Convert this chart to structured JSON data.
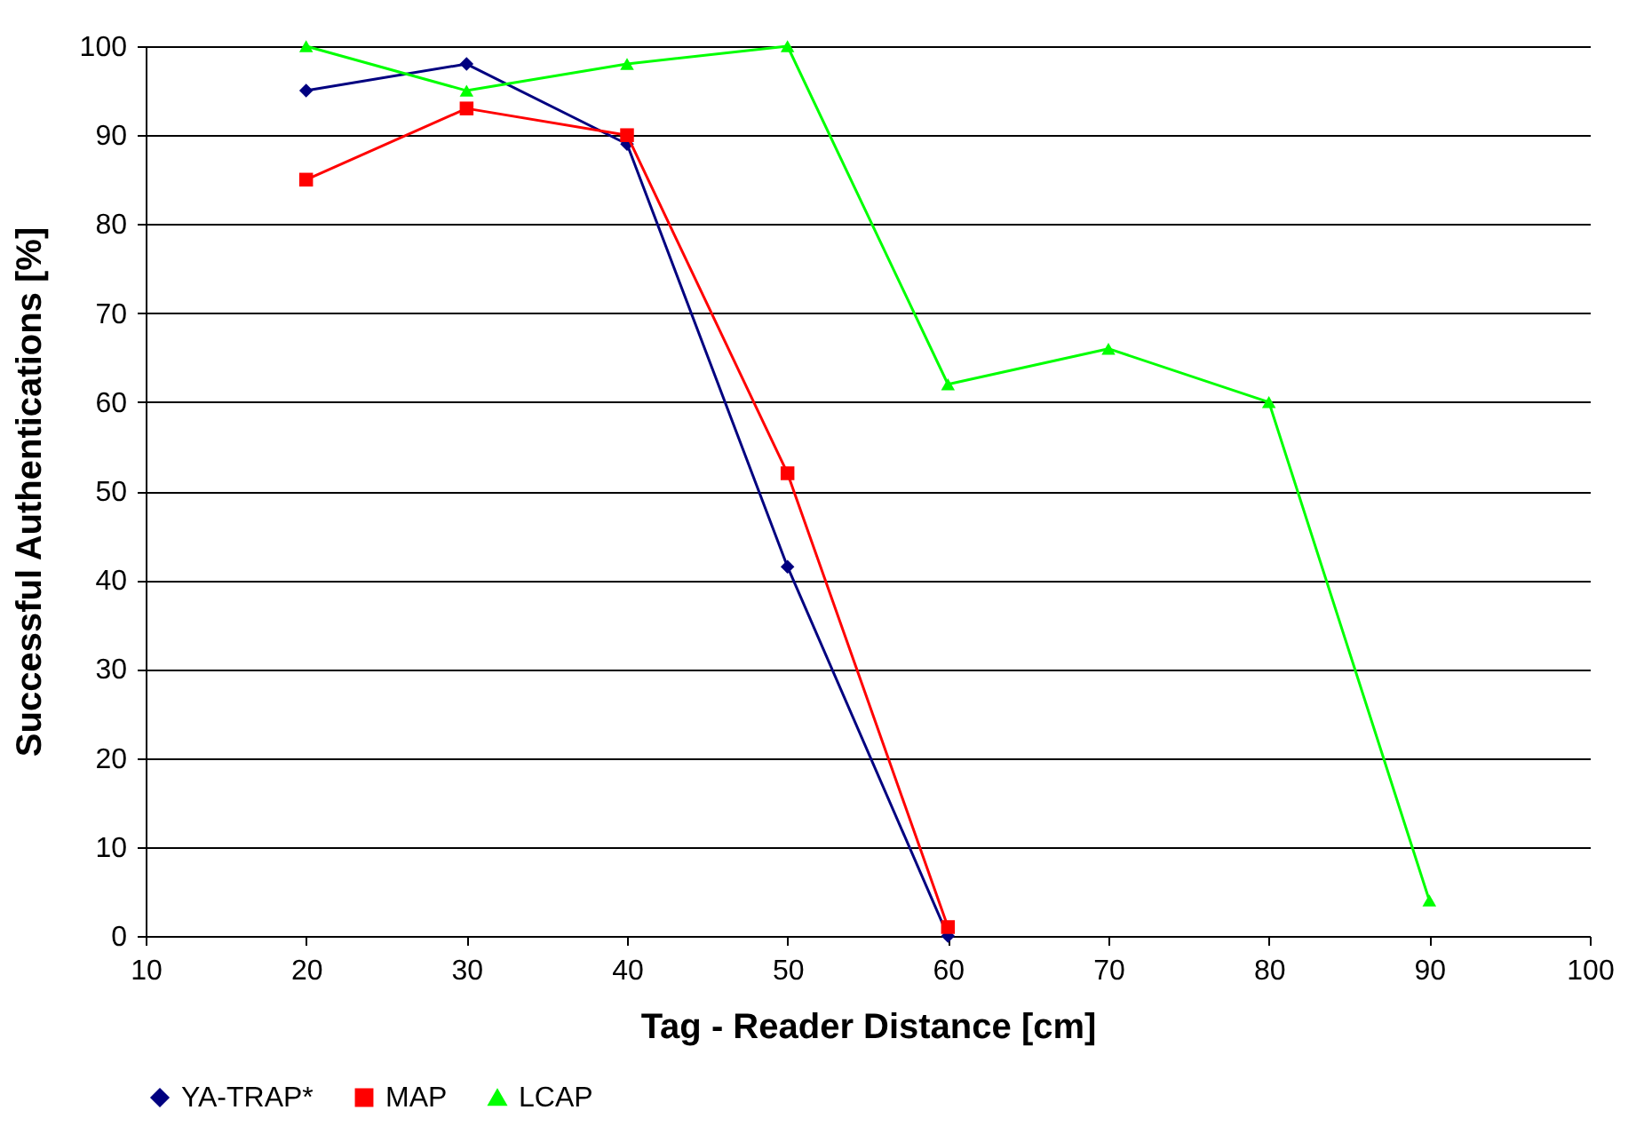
{
  "chart_data": {
    "type": "line",
    "xlabel": "Tag - Reader Distance [cm]",
    "ylabel": "Successful Authentications [%]",
    "xlim": [
      10,
      100
    ],
    "xticks": [
      10,
      20,
      30,
      40,
      50,
      60,
      70,
      80,
      90,
      100
    ],
    "ylim": [
      0,
      100
    ],
    "yticks": [
      0,
      10,
      20,
      30,
      40,
      50,
      60,
      70,
      80,
      90,
      100
    ],
    "grid": "y",
    "legend": "bottom",
    "line_style": "solid",
    "series": [
      {
        "name": "YA-TRAP*",
        "color": "#000080",
        "marker": "diamond",
        "x": [
          20,
          30,
          40,
          50,
          60
        ],
        "values": [
          95,
          98,
          89,
          41.5,
          0
        ]
      },
      {
        "name": "MAP",
        "color": "#ff0000",
        "marker": "square",
        "x": [
          20,
          30,
          40,
          50,
          60
        ],
        "values": [
          85,
          93,
          90,
          52,
          1
        ]
      },
      {
        "name": "LCAP",
        "color": "#00ff00",
        "marker": "triangle",
        "x": [
          20,
          30,
          40,
          50,
          60,
          70,
          80,
          90
        ],
        "values": [
          100,
          95,
          98,
          100,
          62,
          66,
          60,
          4
        ]
      }
    ]
  }
}
